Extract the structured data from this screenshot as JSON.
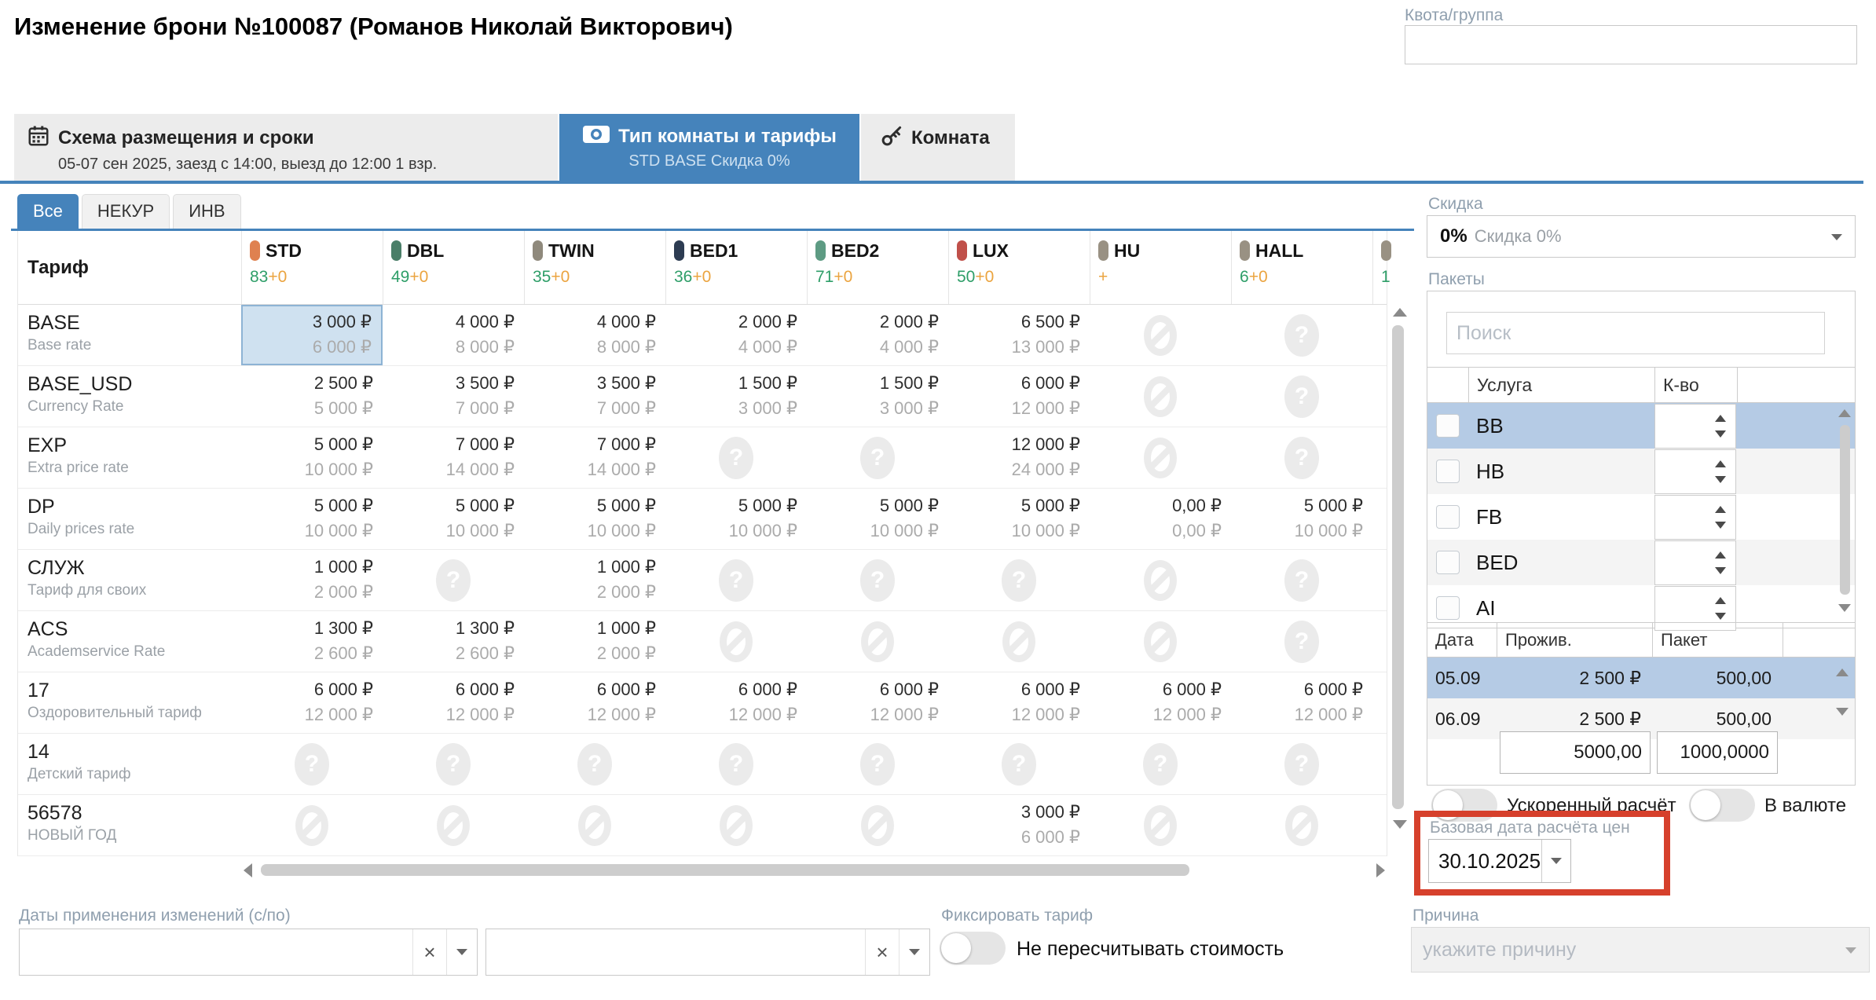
{
  "header": {
    "title": "Изменение брони №100087 (Романов Николай Викторович)",
    "quota_label": "Квота/группа",
    "quota_value": ""
  },
  "tabs": [
    {
      "label": "Схема размещения и сроки",
      "sublabel": "05-07 сен 2025, заезд с 14:00, выезд до 12:00 1 взр.",
      "icon": "calendar-icon",
      "active": false
    },
    {
      "label": "Тип комнаты и тарифы",
      "sublabel": "STD BASE Скидка 0%",
      "icon": "banknote-icon",
      "active": true
    },
    {
      "label": "Комната",
      "sublabel": "",
      "icon": "key-icon",
      "active": false
    }
  ],
  "filter_tabs": [
    {
      "label": "Все",
      "active": true
    },
    {
      "label": "НЕКУР",
      "active": false
    },
    {
      "label": "ИНВ",
      "active": false
    }
  ],
  "rate_table": {
    "corner": "Тариф",
    "columns": [
      {
        "code": "STD",
        "color": "#df8150",
        "count": "83",
        "plus": "+0"
      },
      {
        "code": "DBL",
        "color": "#4a7e68",
        "count": "49",
        "plus": "+0"
      },
      {
        "code": "TWIN",
        "color": "#8f897c",
        "count": "35",
        "plus": "+0"
      },
      {
        "code": "BED1",
        "color": "#2d3c52",
        "count": "36",
        "plus": "+0"
      },
      {
        "code": "BED2",
        "color": "#5e9b83",
        "count": "71",
        "plus": "+0"
      },
      {
        "code": "LUX",
        "color": "#c0504a",
        "count": "50",
        "plus": "+0"
      },
      {
        "code": "HU",
        "color": "#999183",
        "count": "",
        "plus": "+"
      },
      {
        "code": "HALL",
        "color": "#999183",
        "count": "6",
        "plus": "+0"
      },
      {
        "code": "",
        "color": "#999183",
        "count": "1",
        "plus": ""
      }
    ],
    "rows": [
      {
        "code": "BASE",
        "desc": "Base rate",
        "cells": [
          {
            "p": "3 000 ₽",
            "s": "6 000 ₽",
            "sel": true
          },
          {
            "p": "4 000 ₽",
            "s": "8 000 ₽"
          },
          {
            "p": "4 000 ₽",
            "s": "8 000 ₽"
          },
          {
            "p": "2 000 ₽",
            "s": "4 000 ₽"
          },
          {
            "p": "2 000 ₽",
            "s": "4 000 ₽"
          },
          {
            "p": "6 500 ₽",
            "s": "13 000 ₽"
          },
          {
            "icon": "blocked"
          },
          {
            "icon": "unknown"
          },
          {}
        ]
      },
      {
        "code": "BASE_USD",
        "desc": "Currency Rate",
        "cells": [
          {
            "p": "2 500 ₽",
            "s": "5 000 ₽"
          },
          {
            "p": "3 500 ₽",
            "s": "7 000 ₽"
          },
          {
            "p": "3 500 ₽",
            "s": "7 000 ₽"
          },
          {
            "p": "1 500 ₽",
            "s": "3 000 ₽"
          },
          {
            "p": "1 500 ₽",
            "s": "3 000 ₽"
          },
          {
            "p": "6 000 ₽",
            "s": "12 000 ₽"
          },
          {
            "icon": "blocked"
          },
          {
            "icon": "unknown"
          },
          {}
        ]
      },
      {
        "code": "EXP",
        "desc": "Extra price rate",
        "cells": [
          {
            "p": "5 000 ₽",
            "s": "10 000 ₽"
          },
          {
            "p": "7 000 ₽",
            "s": "14 000 ₽"
          },
          {
            "p": "7 000 ₽",
            "s": "14 000 ₽"
          },
          {
            "icon": "unknown"
          },
          {
            "icon": "unknown"
          },
          {
            "p": "12 000 ₽",
            "s": "24 000 ₽"
          },
          {
            "icon": "blocked"
          },
          {
            "icon": "unknown"
          },
          {}
        ]
      },
      {
        "code": "DP",
        "desc": "Daily prices rate",
        "cells": [
          {
            "p": "5 000 ₽",
            "s": "10 000 ₽"
          },
          {
            "p": "5 000 ₽",
            "s": "10 000 ₽"
          },
          {
            "p": "5 000 ₽",
            "s": "10 000 ₽"
          },
          {
            "p": "5 000 ₽",
            "s": "10 000 ₽"
          },
          {
            "p": "5 000 ₽",
            "s": "10 000 ₽"
          },
          {
            "p": "5 000 ₽",
            "s": "10 000 ₽"
          },
          {
            "p": "0,00 ₽",
            "s": "0,00 ₽"
          },
          {
            "p": "5 000 ₽",
            "s": "10 000 ₽"
          },
          {}
        ]
      },
      {
        "code": "СЛУЖ",
        "desc": "Тариф для своих",
        "cells": [
          {
            "p": "1 000 ₽",
            "s": "2 000 ₽"
          },
          {
            "icon": "unknown"
          },
          {
            "p": "1 000 ₽",
            "s": "2 000 ₽"
          },
          {
            "icon": "unknown"
          },
          {
            "icon": "unknown"
          },
          {
            "icon": "unknown"
          },
          {
            "icon": "blocked"
          },
          {
            "icon": "unknown"
          },
          {}
        ]
      },
      {
        "code": "ACS",
        "desc": "Academservice Rate",
        "cells": [
          {
            "p": "1 300 ₽",
            "s": "2 600 ₽"
          },
          {
            "p": "1 300 ₽",
            "s": "2 600 ₽"
          },
          {
            "p": "1 000 ₽",
            "s": "2 000 ₽"
          },
          {
            "icon": "blocked"
          },
          {
            "icon": "blocked"
          },
          {
            "icon": "blocked"
          },
          {
            "icon": "blocked"
          },
          {
            "icon": "unknown"
          },
          {}
        ]
      },
      {
        "code": "17",
        "desc": "Оздоровительный тариф",
        "cells": [
          {
            "p": "6 000 ₽",
            "s": "12 000 ₽"
          },
          {
            "p": "6 000 ₽",
            "s": "12 000 ₽"
          },
          {
            "p": "6 000 ₽",
            "s": "12 000 ₽"
          },
          {
            "p": "6 000 ₽",
            "s": "12 000 ₽"
          },
          {
            "p": "6 000 ₽",
            "s": "12 000 ₽"
          },
          {
            "p": "6 000 ₽",
            "s": "12 000 ₽"
          },
          {
            "p": "6 000 ₽",
            "s": "12 000 ₽"
          },
          {
            "p": "6 000 ₽",
            "s": "12 000 ₽"
          },
          {}
        ]
      },
      {
        "code": "14",
        "desc": "Детский тариф",
        "cells": [
          {
            "icon": "unknown"
          },
          {
            "icon": "unknown"
          },
          {
            "icon": "unknown"
          },
          {
            "icon": "unknown"
          },
          {
            "icon": "unknown"
          },
          {
            "icon": "unknown"
          },
          {
            "icon": "unknown"
          },
          {
            "icon": "unknown"
          },
          {}
        ]
      },
      {
        "code": "56578",
        "desc": "НОВЫЙ ГОД",
        "cells": [
          {
            "icon": "blocked"
          },
          {
            "icon": "blocked"
          },
          {
            "icon": "blocked"
          },
          {
            "icon": "blocked"
          },
          {
            "icon": "blocked"
          },
          {
            "p": "3 000 ₽",
            "s": "6 000 ₽"
          },
          {
            "icon": "blocked"
          },
          {
            "icon": "blocked"
          },
          {}
        ]
      }
    ]
  },
  "right_panel": {
    "discount": {
      "label": "Скидка",
      "value": "0%",
      "desc": "Скидка 0%"
    },
    "packages": {
      "label": "Пакеты",
      "search_placeholder": "Поиск",
      "headers": {
        "service": "Услуга",
        "qty": "К-во"
      },
      "rows": [
        {
          "name": "BB",
          "selected": true
        },
        {
          "name": "HB",
          "selected": false
        },
        {
          "name": "FB",
          "selected": false
        },
        {
          "name": "BED",
          "selected": false
        },
        {
          "name": "AI",
          "selected": false
        }
      ]
    },
    "stay_table": {
      "headers": [
        "Дата",
        "Прожив.",
        "Пакет"
      ],
      "rows": [
        {
          "date": "05.09",
          "stay": "2 500 ₽",
          "pkg": "500,00",
          "selected": true
        },
        {
          "date": "06.09",
          "stay": "2 500 ₽",
          "pkg": "500,00",
          "selected": false
        }
      ],
      "totals": {
        "stay": "5000,00",
        "pkg": "1000,0000"
      }
    },
    "toggles": {
      "fast_calc": "Ускоренный расчёт",
      "currency": "В валюте"
    },
    "base_date": {
      "label": "Базовая дата расчёта цен",
      "value": "30.10.2025"
    },
    "reason": {
      "label": "Причина",
      "placeholder": "укажите причину"
    }
  },
  "footer": {
    "dates_label": "Даты применения изменений (с/по)",
    "fix_label": "Фиксировать тариф",
    "no_recalc": "Не пересчитывать стоимость"
  },
  "colors": {
    "accent_blue": "#4583bb",
    "selected_cell_bg": "#cfe1f0",
    "selected_row_bg": "#b5cbe5",
    "highlight_red": "#d6402c"
  }
}
